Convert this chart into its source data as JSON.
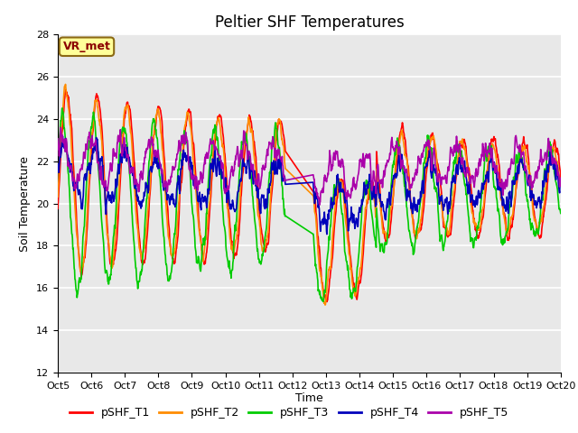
{
  "title": "Peltier SHF Temperatures",
  "ylabel": "Soil Temperature",
  "xlabel": "Time",
  "annotation": "VR_met",
  "ylim": [
    12,
    28
  ],
  "yticks": [
    12,
    14,
    16,
    18,
    20,
    22,
    24,
    26,
    28
  ],
  "xtick_labels": [
    "Oct 5",
    "Oct 6",
    "Oct 7",
    "Oct 8",
    "Oct 9",
    "Oct 10",
    "Oct 11",
    "Oct 12",
    "Oct 13",
    "Oct 14",
    "Oct 15",
    "Oct 16",
    "Oct 17",
    "Oct 18",
    "Oct 19",
    "Oct 20"
  ],
  "line_colors": [
    "#ff0000",
    "#ff8c00",
    "#00cc00",
    "#0000bb",
    "#aa00aa"
  ],
  "line_labels": [
    "pSHF_T1",
    "pSHF_T2",
    "pSHF_T3",
    "pSHF_T4",
    "pSHF_T5"
  ],
  "line_width": 1.2,
  "bg_color": "#e8e8e8",
  "fig_bg": "#ffffff",
  "title_fontsize": 12,
  "axis_fontsize": 9,
  "tick_fontsize": 8,
  "legend_fontsize": 9
}
